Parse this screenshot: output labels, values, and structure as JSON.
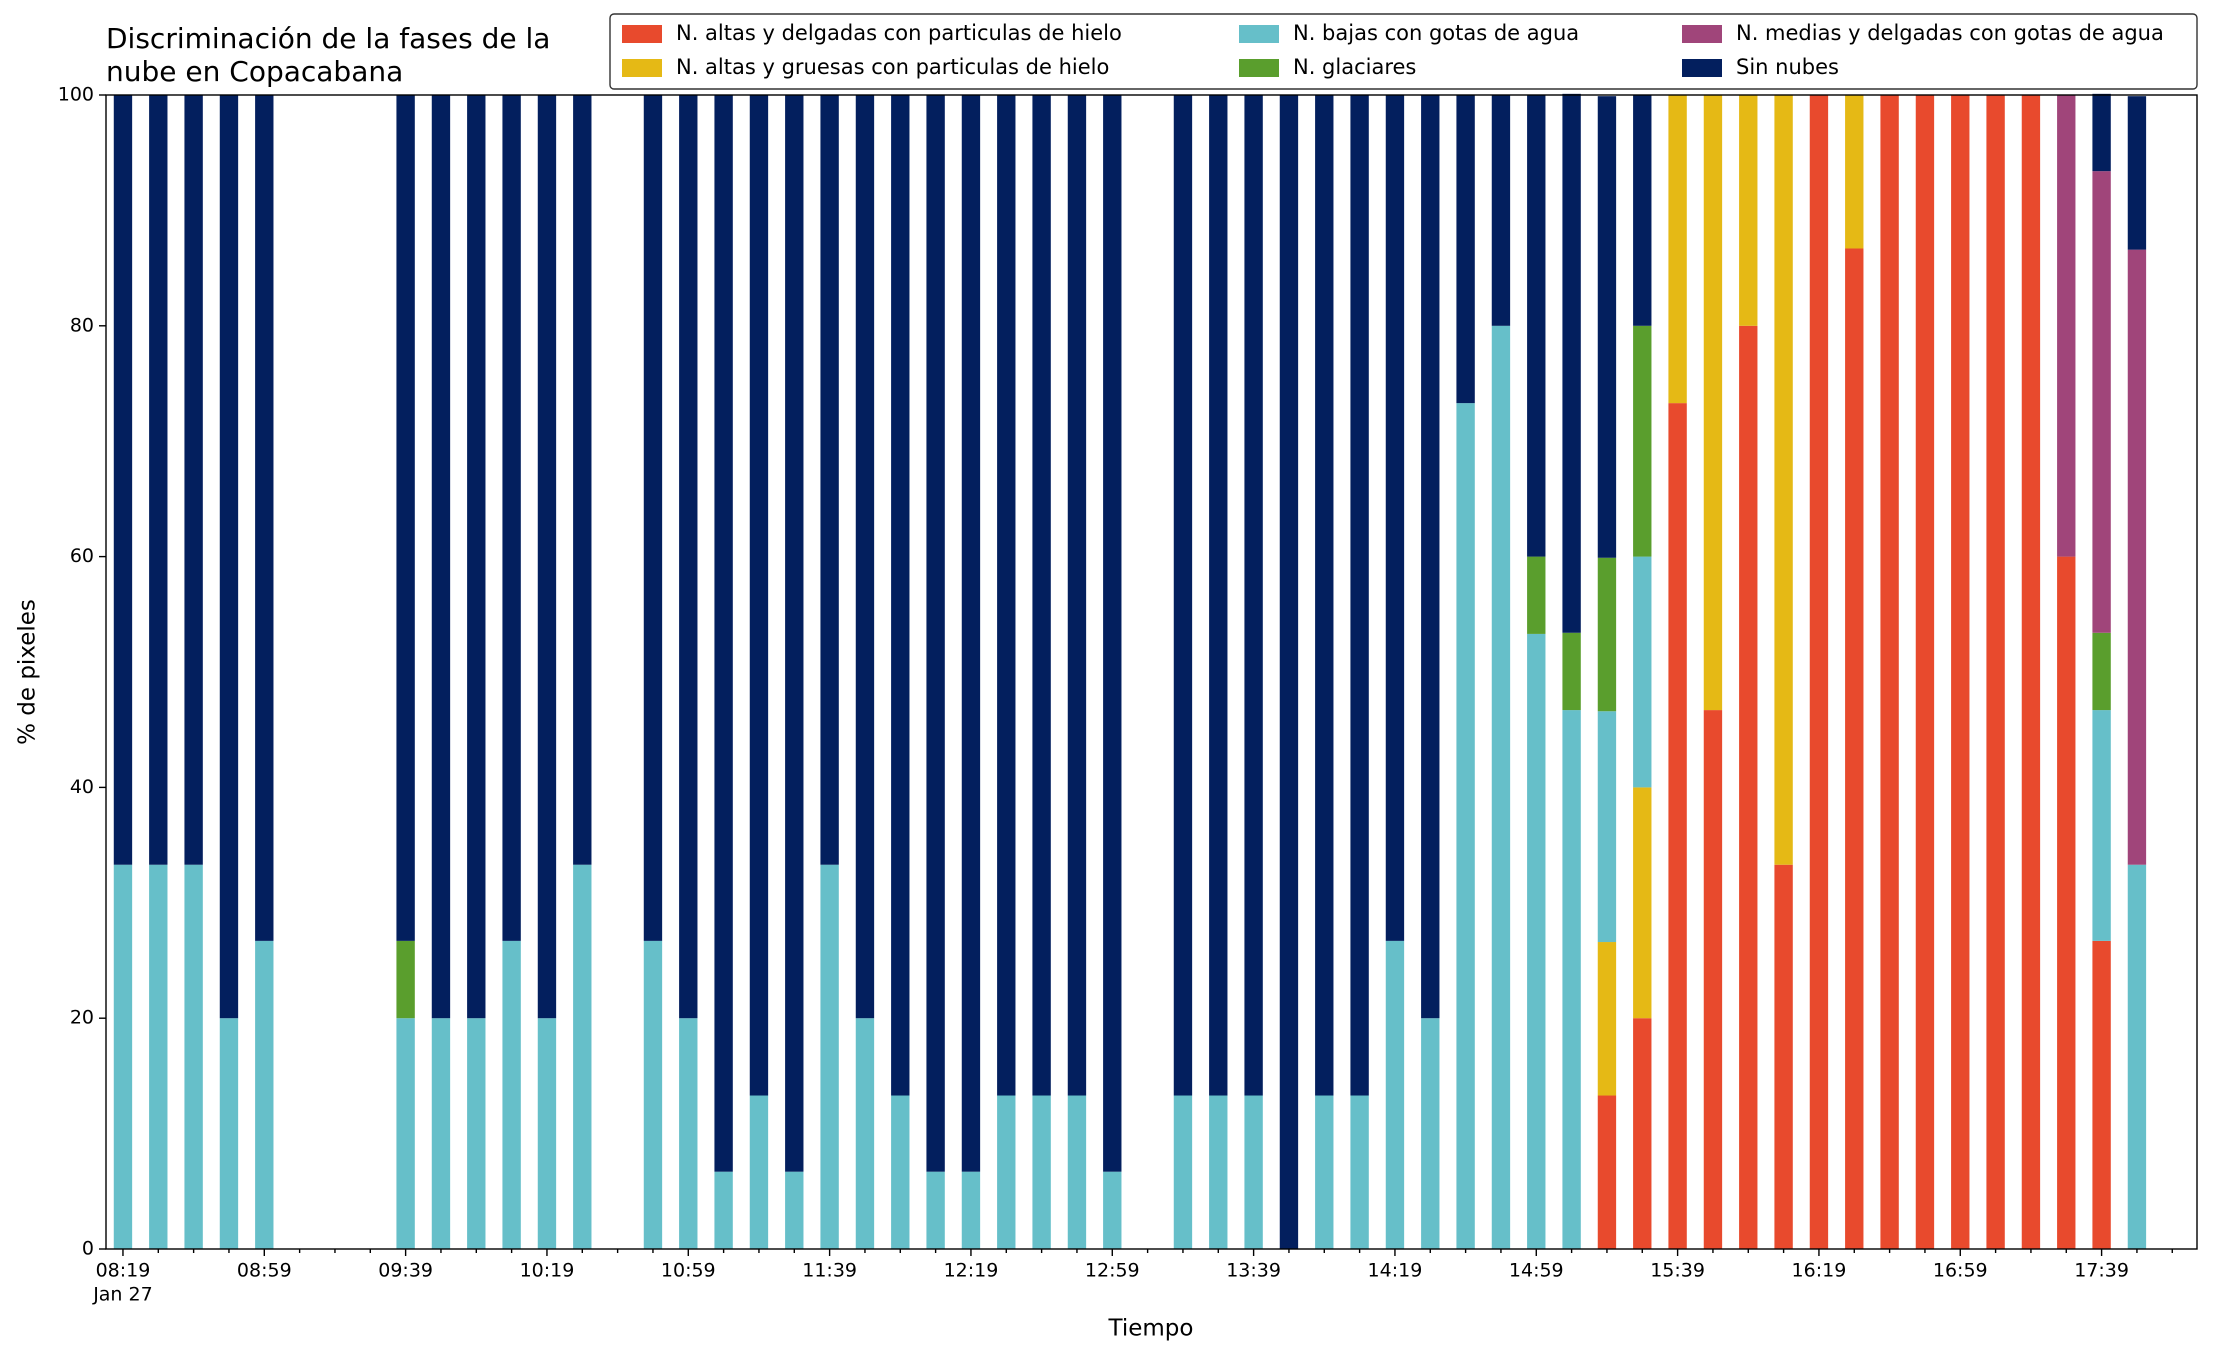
{
  "chart_data": {
    "type": "stacked_bar",
    "title": [
      "Discriminación de la fases de la",
      "nube en Copacabana"
    ],
    "xlabel": "Tiempo",
    "ylabel": "% de pixeles",
    "x_date_label": "Jan 27",
    "categories": [
      "08:19",
      null,
      null,
      null,
      "08:59",
      null,
      null,
      null,
      "09:39",
      null,
      null,
      null,
      "10:19",
      null,
      null,
      null,
      "10:59",
      null,
      null,
      null,
      "11:39",
      null,
      null,
      null,
      "12:19",
      null,
      null,
      null,
      "12:59",
      null,
      null,
      null,
      "13:39",
      null,
      null,
      null,
      "14:19",
      null,
      null,
      null,
      "14:59",
      null,
      null,
      null,
      "15:39",
      null,
      null,
      null,
      "16:19",
      null,
      null,
      null,
      "16:59",
      null,
      null,
      null,
      "17:39",
      null
    ],
    "ylim": [
      0,
      100
    ],
    "yticks": [
      0,
      20,
      40,
      60,
      80,
      100
    ],
    "legend": "top-right",
    "series": [
      {
        "name": "N. altas y delgadas con particulas de hielo",
        "color": "#e84a2d",
        "values": [
          0,
          0,
          0,
          0,
          0,
          null,
          null,
          null,
          0,
          0,
          0,
          0,
          0,
          0,
          null,
          0,
          0,
          0,
          0,
          0,
          0,
          0,
          0,
          0,
          0,
          0,
          0,
          0,
          0,
          null,
          0,
          0,
          0,
          0,
          0,
          0,
          0,
          0,
          0,
          0,
          0,
          0,
          13.3,
          20,
          73.3,
          46.7,
          80,
          33.3,
          100,
          86.7,
          100,
          100,
          100,
          100,
          100,
          60,
          26.7,
          0
        ]
      },
      {
        "name": "N. altas y gruesas con particulas de hielo",
        "color": "#e5b915",
        "values": [
          0,
          0,
          0,
          0,
          0,
          null,
          null,
          null,
          0,
          0,
          0,
          0,
          0,
          0,
          null,
          0,
          0,
          0,
          0,
          0,
          0,
          0,
          0,
          0,
          0,
          0,
          0,
          0,
          0,
          null,
          0,
          0,
          0,
          0,
          0,
          0,
          0,
          0,
          0,
          0,
          0,
          0,
          13.3,
          20,
          26.7,
          53.3,
          20,
          66.7,
          0,
          13.3,
          0,
          0,
          0,
          0,
          0,
          0,
          0,
          0
        ]
      },
      {
        "name": "N. bajas con gotas de agua",
        "color": "#66bfc9",
        "values": [
          33.3,
          33.3,
          33.3,
          20,
          26.7,
          null,
          null,
          null,
          20,
          20,
          20,
          26.7,
          20,
          33.3,
          null,
          26.7,
          20,
          6.7,
          13.3,
          6.7,
          33.3,
          20,
          13.3,
          6.7,
          6.7,
          13.3,
          13.3,
          13.3,
          6.7,
          null,
          13.3,
          13.3,
          13.3,
          0,
          13.3,
          13.3,
          26.7,
          20,
          73.3,
          80,
          53.3,
          46.7,
          20,
          20,
          0,
          0,
          0,
          0,
          0,
          0,
          0,
          0,
          0,
          0,
          0,
          0,
          20,
          33.3
        ]
      },
      {
        "name": "N. glaciares",
        "color": "#5a9e2d",
        "values": [
          0,
          0,
          0,
          0,
          0,
          null,
          null,
          null,
          6.7,
          0,
          0,
          0,
          0,
          0,
          null,
          0,
          0,
          0,
          0,
          0,
          0,
          0,
          0,
          0,
          0,
          0,
          0,
          0,
          0,
          null,
          0,
          0,
          0,
          0,
          0,
          0,
          0,
          0,
          0,
          0,
          6.7,
          6.7,
          13.3,
          20,
          0,
          0,
          0,
          0,
          0,
          0,
          0,
          0,
          0,
          0,
          0,
          0,
          6.7,
          0
        ]
      },
      {
        "name": "N. medias y delgadas con gotas de agua",
        "color": "#a0457a",
        "values": [
          0,
          0,
          0,
          0,
          0,
          null,
          null,
          null,
          0,
          0,
          0,
          0,
          0,
          0,
          null,
          0,
          0,
          0,
          0,
          0,
          0,
          0,
          0,
          0,
          0,
          0,
          0,
          0,
          0,
          null,
          0,
          0,
          0,
          0,
          0,
          0,
          0,
          0,
          0,
          0,
          0,
          0,
          0,
          0,
          0,
          0,
          0,
          0,
          0,
          0,
          0,
          0,
          0,
          0,
          0,
          40,
          40,
          53.3
        ]
      },
      {
        "name": "Sin nubes",
        "color": "#031f5e",
        "values": [
          66.7,
          66.7,
          66.7,
          80,
          73.3,
          null,
          null,
          null,
          73.3,
          80,
          80,
          73.3,
          80,
          66.7,
          null,
          73.3,
          80,
          93.3,
          86.7,
          93.3,
          66.7,
          80,
          86.7,
          93.3,
          93.3,
          86.7,
          86.7,
          86.7,
          93.3,
          null,
          86.7,
          86.7,
          86.7,
          100,
          86.7,
          86.7,
          73.3,
          80,
          26.7,
          20,
          40,
          46.7,
          40,
          20,
          0,
          0,
          0,
          0,
          0,
          0,
          0,
          0,
          0,
          0,
          0,
          0,
          6.7,
          13.3
        ]
      }
    ]
  }
}
